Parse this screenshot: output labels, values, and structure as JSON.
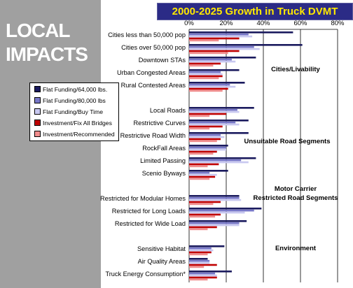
{
  "side_title": [
    "LOCAL",
    "IMPACTS"
  ],
  "banner_title": "2000-2025 Growth in Truck DVMT",
  "colors": {
    "sidebar": "#a0a0a0",
    "banner_bg": "#2b2b86",
    "banner_text": "#ffe800"
  },
  "legend": [
    {
      "label": "Flat Funding/64,000 lbs.",
      "color": "#1a1a5e"
    },
    {
      "label": "Flat Funding/80,000 lbs",
      "color": "#7777c8"
    },
    {
      "label": "Flat Funding/Buy Time",
      "color": "#c8c8f0"
    },
    {
      "label": "Investment/Fix All Bridges",
      "color": "#c00000"
    },
    {
      "label": "Investment/Recommended",
      "color": "#f08c8c"
    }
  ],
  "group_labels": [
    {
      "lines": [
        "Cities/Livability"
      ]
    },
    {
      "lines": [
        "Unsuitable Road Segments"
      ]
    },
    {
      "lines": [
        "Motor Carrier",
        "Restricted Road Segments"
      ]
    },
    {
      "lines": [
        "Environment"
      ]
    }
  ],
  "chart_data": {
    "type": "bar",
    "orientation": "horizontal",
    "title": "2000-2025 Growth in Truck DVMT",
    "xlim": [
      0,
      80
    ],
    "ticks": [
      "0%",
      "20%",
      "40%",
      "60%",
      "80%"
    ],
    "tick_values": [
      0,
      20,
      40,
      60,
      80
    ],
    "grid": true,
    "categories": [
      "Cities less than 50,000 pop",
      "Cities over 50,000 pop",
      "Downtown STAs",
      "Urban Congested Areas",
      "Rural Contested Areas",
      "",
      "Local Roads",
      "Restrictive Curves",
      "Restrictive Road Width",
      "RockFall Areas",
      "Limited Passing",
      "Scenio Byways",
      "",
      "Restricted for Modular Homes",
      "Restricted for Long Loads",
      "Restricted for Wide Load",
      "",
      "Sensitive Habitat",
      "Air Quality Areas",
      "Truck Energy Consumption*"
    ],
    "series": [
      {
        "name": "Flat Funding/64,000 lbs.",
        "values": [
          56,
          61,
          36,
          27,
          30,
          null,
          35,
          32,
          32,
          21,
          36,
          21,
          null,
          27,
          39,
          31,
          null,
          19,
          10,
          23
        ]
      },
      {
        "name": "Flat Funding/80,000 lbs",
        "values": [
          32,
          35,
          23,
          17,
          22,
          null,
          26,
          25,
          17,
          20,
          28,
          11,
          null,
          27,
          35,
          27,
          null,
          12,
          11,
          14
        ]
      },
      {
        "name": "Flat Funding/Buy Time",
        "values": [
          34,
          38,
          25,
          18,
          25,
          null,
          27,
          27,
          19,
          20,
          32,
          15,
          null,
          28,
          30,
          27,
          null,
          13,
          11,
          15
        ]
      },
      {
        "name": "Investment/Fix All Bridges",
        "values": [
          27,
          27,
          17,
          18,
          21,
          null,
          20,
          18,
          17,
          15,
          16,
          14,
          null,
          17,
          17,
          15,
          null,
          12,
          15,
          15
        ]
      },
      {
        "name": "Investment/Recommended",
        "values": [
          16,
          21,
          13,
          16,
          18,
          null,
          11,
          11,
          15,
          13,
          10,
          11,
          null,
          13,
          14,
          10,
          null,
          10,
          8,
          10
        ]
      }
    ]
  }
}
